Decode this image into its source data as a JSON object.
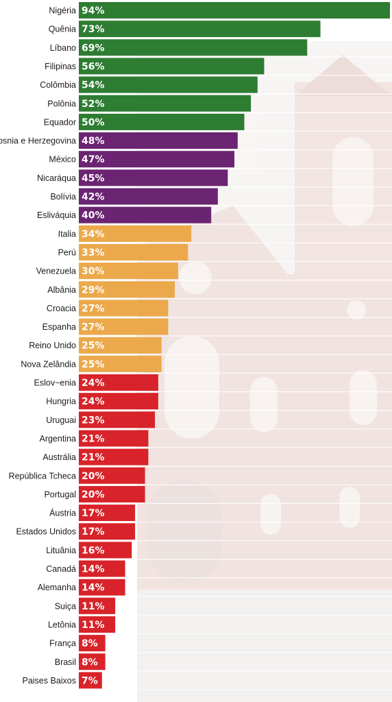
{
  "chart_data": {
    "type": "bar",
    "orientation": "horizontal",
    "title": "",
    "xlabel": "",
    "ylabel": "",
    "xlim": [
      0,
      94
    ],
    "value_suffix": "%",
    "grid": true,
    "colors": {
      "green": "#2e7d32",
      "purple": "#6b2472",
      "orange": "#eba94c",
      "red": "#d8232a"
    },
    "bars": [
      {
        "label": "Nigéria",
        "value": 94,
        "color": "green"
      },
      {
        "label": "Quênia",
        "value": 73,
        "color": "green"
      },
      {
        "label": "Líbano",
        "value": 69,
        "color": "green"
      },
      {
        "label": "Filipinas",
        "value": 56,
        "color": "green"
      },
      {
        "label": "Colômbia",
        "value": 54,
        "color": "green"
      },
      {
        "label": "Polônia",
        "value": 52,
        "color": "green"
      },
      {
        "label": "Equador",
        "value": 50,
        "color": "green"
      },
      {
        "label": "Bosnia e Herzegovina",
        "value": 48,
        "color": "purple"
      },
      {
        "label": "México",
        "value": 47,
        "color": "purple"
      },
      {
        "label": "Nicaráqua",
        "value": 45,
        "color": "purple"
      },
      {
        "label": "Bolívia",
        "value": 42,
        "color": "purple"
      },
      {
        "label": "Esliváquia",
        "value": 40,
        "color": "purple"
      },
      {
        "label": "Italia",
        "value": 34,
        "color": "orange"
      },
      {
        "label": "Perú",
        "value": 33,
        "color": "orange"
      },
      {
        "label": "Venezuela",
        "value": 30,
        "color": "orange"
      },
      {
        "label": "Albânia",
        "value": 29,
        "color": "orange"
      },
      {
        "label": "Croacia",
        "value": 27,
        "color": "orange"
      },
      {
        "label": "Espanha",
        "value": 27,
        "color": "orange"
      },
      {
        "label": "Reino Unido",
        "value": 25,
        "color": "orange"
      },
      {
        "label": "Nova Zelândia",
        "value": 25,
        "color": "orange"
      },
      {
        "label": "Eslov~enia",
        "value": 24,
        "color": "red"
      },
      {
        "label": "Hungria",
        "value": 24,
        "color": "red"
      },
      {
        "label": "Uruguai",
        "value": 23,
        "color": "red"
      },
      {
        "label": "Argentina",
        "value": 21,
        "color": "red"
      },
      {
        "label": "Austrália",
        "value": 21,
        "color": "red"
      },
      {
        "label": "República Tcheca",
        "value": 20,
        "color": "red"
      },
      {
        "label": "Portugal",
        "value": 20,
        "color": "red"
      },
      {
        "label": "Áustria",
        "value": 17,
        "color": "red"
      },
      {
        "label": "Estados Unidos",
        "value": 17,
        "color": "red"
      },
      {
        "label": "Lituânia",
        "value": 16,
        "color": "red"
      },
      {
        "label": "Canadá",
        "value": 14,
        "color": "red"
      },
      {
        "label": "Alemanha",
        "value": 14,
        "color": "red"
      },
      {
        "label": "Suiça",
        "value": 11,
        "color": "red"
      },
      {
        "label": "Letônia",
        "value": 11,
        "color": "red"
      },
      {
        "label": "França",
        "value": 8,
        "color": "red"
      },
      {
        "label": "Brasil",
        "value": 8,
        "color": "red"
      },
      {
        "label": "Paises Baixos",
        "value": 7,
        "color": "red"
      }
    ]
  }
}
